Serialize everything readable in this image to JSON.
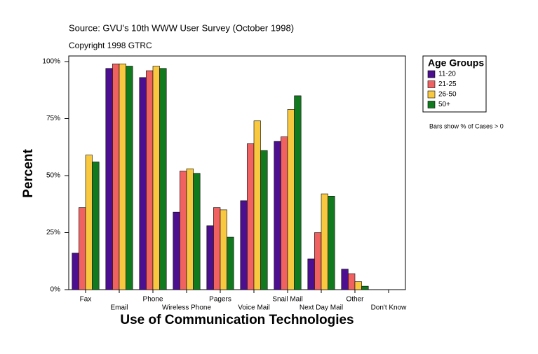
{
  "chart_data": {
    "type": "bar",
    "title": "Source: GVU's 10th WWW User Survey (October 1998)",
    "subtitle": "Copyright 1998 GTRC",
    "x_label": "Use of Communication Technologies",
    "y_label": "Percent",
    "legend_title": "Age Groups",
    "note": "Bars show % of Cases > 0",
    "categories": [
      "Fax",
      "Email",
      "Phone",
      "Wireless Phone",
      "Pagers",
      "Voice Mail",
      "Snail Mail",
      "Next Day Mail",
      "Other",
      "Don't Know"
    ],
    "series": [
      {
        "name": "11-20",
        "color": "#4b0f8f",
        "values": [
          16,
          97,
          93,
          34,
          28,
          39,
          65,
          13.5,
          9,
          0
        ]
      },
      {
        "name": "21-25",
        "color": "#f06262",
        "values": [
          36,
          99,
          96,
          52,
          36,
          64,
          67,
          25,
          7,
          0
        ]
      },
      {
        "name": "26-50",
        "color": "#f8c840",
        "values": [
          59,
          99,
          98,
          53,
          35,
          74,
          79,
          42,
          3.5,
          0
        ]
      },
      {
        "name": "50+",
        "color": "#127a1e",
        "values": [
          56,
          98,
          97,
          51,
          23,
          61,
          85,
          41,
          1.5,
          0
        ]
      }
    ],
    "ylim": [
      0,
      100
    ],
    "yticks": [
      {
        "value": 0,
        "label": "0%"
      },
      {
        "value": 25,
        "label": "25%"
      },
      {
        "value": 50,
        "label": "50%"
      },
      {
        "value": 75,
        "label": "75%"
      },
      {
        "value": 100,
        "label": "100%"
      }
    ],
    "legend": "right"
  }
}
